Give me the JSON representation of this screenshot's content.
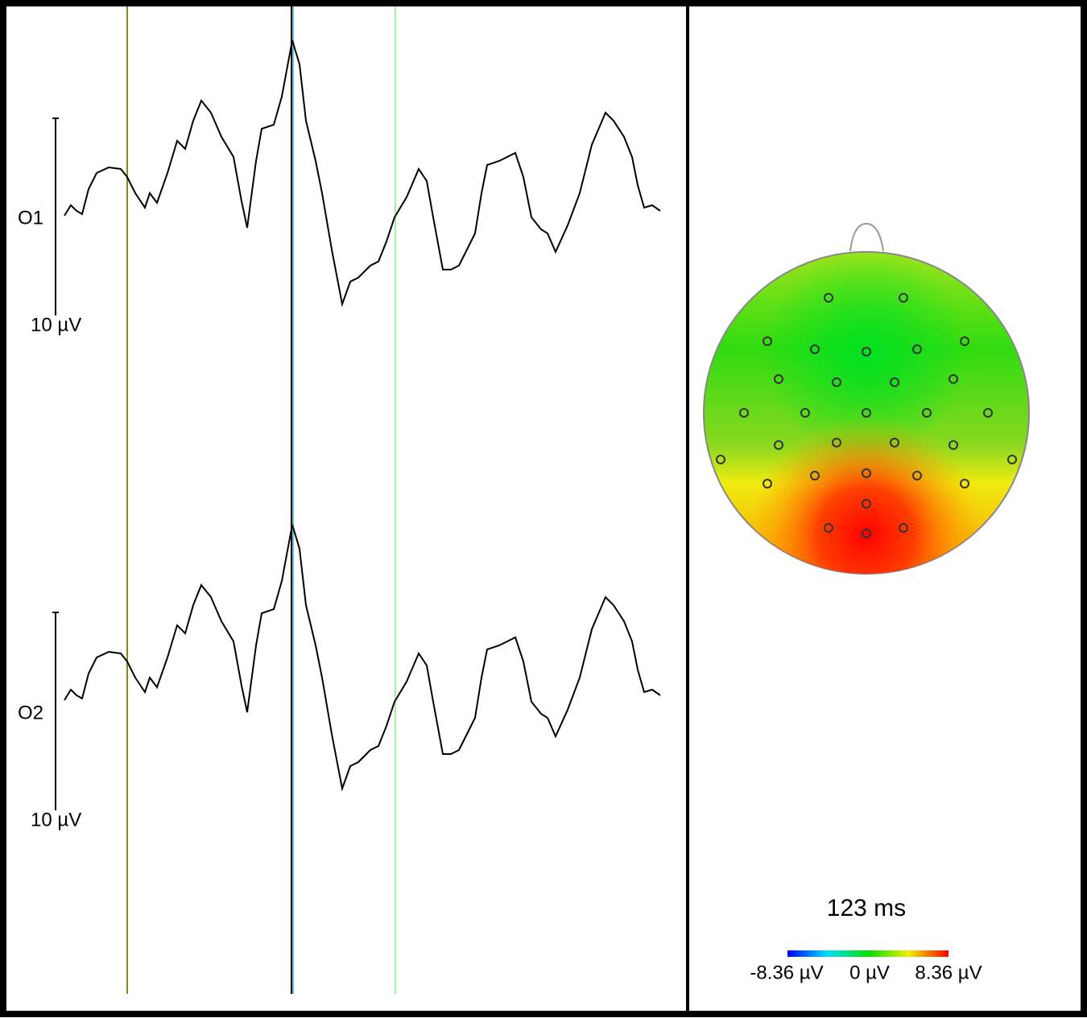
{
  "channels": [
    {
      "label": "O1",
      "scale_label": "10 µV"
    },
    {
      "label": "O2",
      "scale_label": "10 µV"
    }
  ],
  "topomap": {
    "time_label": "123 ms",
    "colorbar": {
      "min_label": "-8.36 µV",
      "mid_label": "0 µV",
      "max_label": "8.36 µV"
    }
  }
}
